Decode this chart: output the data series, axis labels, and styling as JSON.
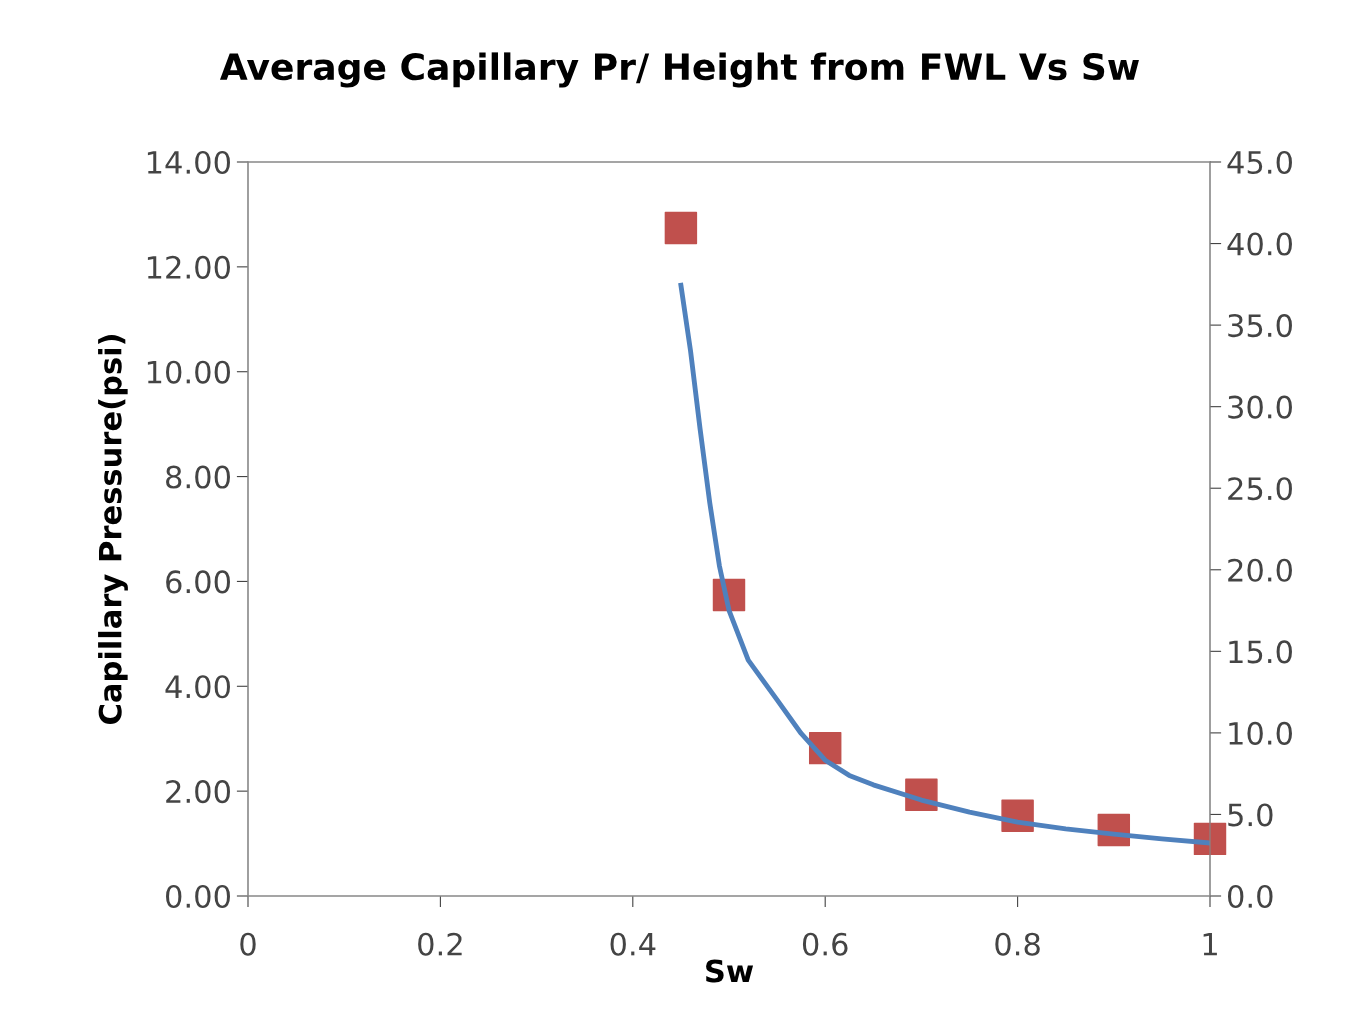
{
  "chart_data": {
    "type": "scatter",
    "title": "Average Capillary Pr/ Height from FWL Vs Sw",
    "xlabel": "Sw",
    "ylabel": "Capillary Pressure(psi)",
    "xlim": [
      0,
      1
    ],
    "xticks": [
      0,
      0.2,
      0.4,
      0.6,
      0.8,
      1
    ],
    "ylim": [
      0,
      14
    ],
    "yticks": [
      {
        "value": 0,
        "label": "0.00"
      },
      {
        "value": 2,
        "label": "2.00"
      },
      {
        "value": 4,
        "label": "4.00"
      },
      {
        "value": 6,
        "label": "6.00"
      },
      {
        "value": 8,
        "label": "8.00"
      },
      {
        "value": 10,
        "label": "10.00"
      },
      {
        "value": 12,
        "label": "12.00"
      },
      {
        "value": 14,
        "label": "14.00"
      }
    ],
    "y2lim": [
      0,
      45
    ],
    "y2ticks": [
      {
        "value": 0,
        "label": "0.0"
      },
      {
        "value": 5,
        "label": "5.0"
      },
      {
        "value": 10,
        "label": "10.0"
      },
      {
        "value": 15,
        "label": "15.0"
      },
      {
        "value": 20,
        "label": "20.0"
      },
      {
        "value": 25,
        "label": "25.0"
      },
      {
        "value": 30,
        "label": "30.0"
      },
      {
        "value": 35,
        "label": "35.0"
      },
      {
        "value": 40,
        "label": "40.0"
      },
      {
        "value": 45,
        "label": "45.0"
      }
    ],
    "grid": false,
    "legend": false,
    "series": [
      {
        "marker": "square",
        "color": "#c0504d",
        "x": [
          0.45,
          0.5,
          0.6,
          0.7,
          0.8,
          0.9,
          1.0
        ],
        "values": [
          12.74,
          5.74,
          2.82,
          1.93,
          1.53,
          1.26,
          1.09
        ]
      },
      {
        "type": "line",
        "marker": "none",
        "line_style": "solid",
        "color": "#4f81bd",
        "x": [
          0.45,
          0.46,
          0.47,
          0.48,
          0.49,
          0.5,
          0.52,
          0.55,
          0.575,
          0.6,
          0.625,
          0.65,
          0.7,
          0.75,
          0.8,
          0.85,
          0.9,
          0.95,
          1.0
        ],
        "values": [
          11.65,
          10.4,
          8.9,
          7.5,
          6.3,
          5.45,
          4.5,
          3.74,
          3.1,
          2.59,
          2.3,
          2.12,
          1.83,
          1.6,
          1.41,
          1.28,
          1.18,
          1.09,
          1.01
        ]
      }
    ]
  }
}
